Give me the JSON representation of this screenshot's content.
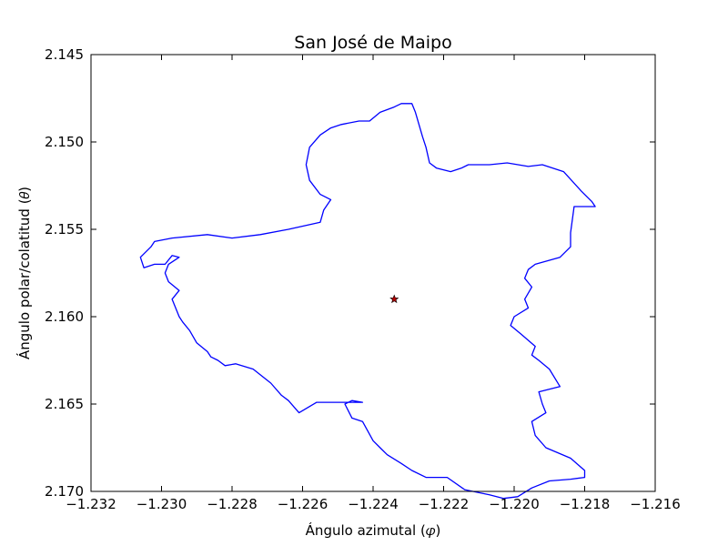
{
  "chart_data": {
    "type": "line",
    "title": "San José de Maipo",
    "xlabel": "Ángulo azimutal (𝜑)",
    "ylabel": "Ángulo polar/colatitud (𝜃)",
    "xlim": [
      -1.232,
      -1.216
    ],
    "ylim": [
      2.145,
      2.17
    ],
    "y_inverted": true,
    "grid": false,
    "xticks": [
      -1.232,
      -1.23,
      -1.228,
      -1.226,
      -1.224,
      -1.222,
      -1.22,
      -1.218,
      -1.216
    ],
    "yticks": [
      2.145,
      2.15,
      2.155,
      2.16,
      2.165,
      2.17
    ],
    "xtick_labels": [
      "−1.232",
      "−1.230",
      "−1.228",
      "−1.226",
      "−1.224",
      "−1.222",
      "−1.220",
      "−1.218",
      "−1.216"
    ],
    "ytick_labels": [
      "2.145",
      "2.150",
      "2.155",
      "2.160",
      "2.165",
      "2.170"
    ],
    "series": [
      {
        "kind": "boundary",
        "color": "#0000ff",
        "x": [
          -1.2238,
          -1.2234,
          -1.2232,
          -1.2229,
          -1.2228,
          -1.2227,
          -1.2226,
          -1.2225,
          -1.2224,
          -1.2222,
          -1.2218,
          -1.2215,
          -1.2213,
          -1.2211,
          -1.2207,
          -1.2202,
          -1.2196,
          -1.2192,
          -1.2186,
          -1.2181,
          -1.2178,
          -1.2177,
          -1.2181,
          -1.2183,
          -1.2184,
          -1.2184,
          -1.2187,
          -1.2194,
          -1.2196,
          -1.2197,
          -1.2195,
          -1.2197,
          -1.2196,
          -1.22,
          -1.2201,
          -1.2198,
          -1.2194,
          -1.2195,
          -1.2193,
          -1.219,
          -1.2187,
          -1.2193,
          -1.2192,
          -1.2191,
          -1.2195,
          -1.2194,
          -1.2191,
          -1.2184,
          -1.218,
          -1.218,
          -1.2184,
          -1.219,
          -1.2195,
          -1.2199,
          -1.2203,
          -1.2207,
          -1.2214,
          -1.2219,
          -1.2225,
          -1.2229,
          -1.2232,
          -1.2236,
          -1.2238,
          -1.224,
          -1.2243,
          -1.2246,
          -1.2248,
          -1.2246,
          -1.2243,
          -1.225,
          -1.2256,
          -1.2261,
          -1.2264,
          -1.2266,
          -1.2269,
          -1.2274,
          -1.2279,
          -1.2282,
          -1.2284,
          -1.2286,
          -1.2287,
          -1.229,
          -1.2292,
          -1.2294,
          -1.2295,
          -1.2297,
          -1.2295,
          -1.2298,
          -1.2299,
          -1.2298,
          -1.2295,
          -1.2297,
          -1.2299,
          -1.2302,
          -1.2305,
          -1.2306,
          -1.2303,
          -1.2302,
          -1.2297,
          -1.2287,
          -1.228,
          -1.2272,
          -1.2264,
          -1.2255,
          -1.2254,
          -1.2252,
          -1.2255,
          -1.2258,
          -1.2259,
          -1.2258,
          -1.2255,
          -1.2252,
          -1.2249,
          -1.2244,
          -1.2241,
          -1.2238
        ],
        "y": [
          2.1483,
          2.148,
          2.1478,
          2.1478,
          2.1483,
          2.149,
          2.1497,
          2.1503,
          2.1512,
          2.1515,
          2.1517,
          2.1515,
          2.1513,
          2.1513,
          2.1513,
          2.1512,
          2.1514,
          2.1513,
          2.1517,
          2.1528,
          2.1534,
          2.1537,
          2.1537,
          2.1537,
          2.1552,
          2.156,
          2.1566,
          2.157,
          2.1573,
          2.1578,
          2.1583,
          2.159,
          2.1595,
          2.16,
          2.1605,
          2.161,
          2.1617,
          2.1622,
          2.1625,
          2.163,
          2.164,
          2.1643,
          2.165,
          2.1655,
          2.166,
          2.1668,
          2.1675,
          2.1681,
          2.1688,
          2.1692,
          2.1693,
          2.1694,
          2.1698,
          2.1703,
          2.1704,
          2.1702,
          2.1699,
          2.1692,
          2.1692,
          2.1688,
          2.1684,
          2.1679,
          2.1675,
          2.1671,
          2.166,
          2.1658,
          2.165,
          2.1648,
          2.1649,
          2.1649,
          2.1649,
          2.1655,
          2.1648,
          2.1645,
          2.1638,
          2.163,
          2.1627,
          2.1628,
          2.1625,
          2.1623,
          2.162,
          2.1615,
          2.1608,
          2.1603,
          2.16,
          2.159,
          2.1585,
          2.158,
          2.1575,
          2.157,
          2.1566,
          2.1565,
          2.157,
          2.157,
          2.1572,
          2.1566,
          2.156,
          2.1557,
          2.1555,
          2.1553,
          2.1555,
          2.1553,
          2.155,
          2.1546,
          2.1539,
          2.1533,
          2.153,
          2.1522,
          2.1513,
          2.1503,
          2.1496,
          2.1492,
          2.149,
          2.1488,
          2.1488,
          2.1483
        ]
      },
      {
        "kind": "center",
        "marker": "star",
        "color": "#b30000",
        "x": [
          -1.2234
        ],
        "y": [
          2.159
        ]
      }
    ]
  }
}
